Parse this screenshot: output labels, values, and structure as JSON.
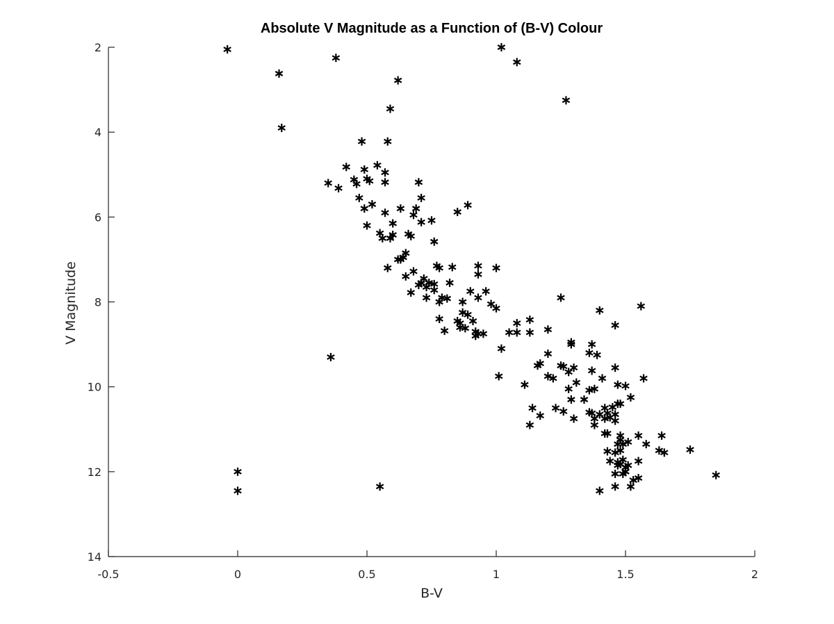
{
  "chart_data": {
    "type": "scatter",
    "title": "Absolute V Magnitude as a Function of (B-V) Colour",
    "xlabel": "B-V",
    "ylabel": "V Magnitude",
    "xlim": [
      -0.5,
      2
    ],
    "ylim": [
      2,
      14
    ],
    "y_reversed": true,
    "grid": false,
    "legend": "none",
    "marker": "asterisk",
    "marker_color": "#000000",
    "xticks": [
      "-0.5",
      "0",
      "0.5",
      "1",
      "1.5",
      "2"
    ],
    "yticks": [
      "2",
      "4",
      "6",
      "8",
      "10",
      "12",
      "14"
    ],
    "points": [
      [
        -0.04,
        2.05
      ],
      [
        0.38,
        2.25
      ],
      [
        0.16,
        2.62
      ],
      [
        1.02,
        2.0
      ],
      [
        1.08,
        2.35
      ],
      [
        0.62,
        2.78
      ],
      [
        1.27,
        3.25
      ],
      [
        0.59,
        3.45
      ],
      [
        0.17,
        3.9
      ],
      [
        0.48,
        4.22
      ],
      [
        0.58,
        4.22
      ],
      [
        0.42,
        4.82
      ],
      [
        0.54,
        4.78
      ],
      [
        0.49,
        4.88
      ],
      [
        0.57,
        4.95
      ],
      [
        0.35,
        5.2
      ],
      [
        0.39,
        5.32
      ],
      [
        0.45,
        5.12
      ],
      [
        0.46,
        5.22
      ],
      [
        0.5,
        5.1
      ],
      [
        0.51,
        5.15
      ],
      [
        0.57,
        5.18
      ],
      [
        0.7,
        5.18
      ],
      [
        0.47,
        5.55
      ],
      [
        0.71,
        5.55
      ],
      [
        0.49,
        5.8
      ],
      [
        0.52,
        5.7
      ],
      [
        0.63,
        5.8
      ],
      [
        0.57,
        5.9
      ],
      [
        0.69,
        5.8
      ],
      [
        0.85,
        5.88
      ],
      [
        0.89,
        5.72
      ],
      [
        0.68,
        5.95
      ],
      [
        0.71,
        6.12
      ],
      [
        0.75,
        6.08
      ],
      [
        0.6,
        6.15
      ],
      [
        0.5,
        6.2
      ],
      [
        0.55,
        6.38
      ],
      [
        0.6,
        6.42
      ],
      [
        0.59,
        6.5
      ],
      [
        0.56,
        6.5
      ],
      [
        0.66,
        6.4
      ],
      [
        0.67,
        6.45
      ],
      [
        0.76,
        6.58
      ],
      [
        0.65,
        6.85
      ],
      [
        0.64,
        6.95
      ],
      [
        0.63,
        7.0
      ],
      [
        0.62,
        7.0
      ],
      [
        0.58,
        7.2
      ],
      [
        0.77,
        7.15
      ],
      [
        0.78,
        7.2
      ],
      [
        0.83,
        7.18
      ],
      [
        0.93,
        7.15
      ],
      [
        0.93,
        7.35
      ],
      [
        1.0,
        7.2
      ],
      [
        0.68,
        7.28
      ],
      [
        0.65,
        7.4
      ],
      [
        0.72,
        7.45
      ],
      [
        0.71,
        7.55
      ],
      [
        0.74,
        7.55
      ],
      [
        0.76,
        7.58
      ],
      [
        0.82,
        7.55
      ],
      [
        0.7,
        7.6
      ],
      [
        0.73,
        7.65
      ],
      [
        0.76,
        7.72
      ],
      [
        0.67,
        7.78
      ],
      [
        0.73,
        7.9
      ],
      [
        0.79,
        7.9
      ],
      [
        0.81,
        7.92
      ],
      [
        0.78,
        8.0
      ],
      [
        0.87,
        8.0
      ],
      [
        0.93,
        7.9
      ],
      [
        0.9,
        7.75
      ],
      [
        0.96,
        7.75
      ],
      [
        0.98,
        8.05
      ],
      [
        1.0,
        8.15
      ],
      [
        0.87,
        8.25
      ],
      [
        0.85,
        8.45
      ],
      [
        0.86,
        8.5
      ],
      [
        0.86,
        8.6
      ],
      [
        0.88,
        8.62
      ],
      [
        0.89,
        8.3
      ],
      [
        0.91,
        8.45
      ],
      [
        0.92,
        8.7
      ],
      [
        0.93,
        8.75
      ],
      [
        0.92,
        8.8
      ],
      [
        0.95,
        8.75
      ],
      [
        0.78,
        8.4
      ],
      [
        0.8,
        8.68
      ],
      [
        1.05,
        8.72
      ],
      [
        1.08,
        8.5
      ],
      [
        1.08,
        8.72
      ],
      [
        1.13,
        8.42
      ],
      [
        1.13,
        8.72
      ],
      [
        1.25,
        7.9
      ],
      [
        1.2,
        8.65
      ],
      [
        1.4,
        8.2
      ],
      [
        1.46,
        8.55
      ],
      [
        1.56,
        8.1
      ],
      [
        1.02,
        9.1
      ],
      [
        0.36,
        9.3
      ],
      [
        1.01,
        9.75
      ],
      [
        1.11,
        9.95
      ],
      [
        1.16,
        9.5
      ],
      [
        1.17,
        9.45
      ],
      [
        1.2,
        9.22
      ],
      [
        1.2,
        9.75
      ],
      [
        1.22,
        9.8
      ],
      [
        1.25,
        9.5
      ],
      [
        1.26,
        9.52
      ],
      [
        1.29,
        8.95
      ],
      [
        1.29,
        9.0
      ],
      [
        1.28,
        9.65
      ],
      [
        1.3,
        9.55
      ],
      [
        1.31,
        9.9
      ],
      [
        1.28,
        10.05
      ],
      [
        1.29,
        10.3
      ],
      [
        1.34,
        10.3
      ],
      [
        1.36,
        9.2
      ],
      [
        1.37,
        9.0
      ],
      [
        1.39,
        9.25
      ],
      [
        1.37,
        9.62
      ],
      [
        1.38,
        10.05
      ],
      [
        1.36,
        10.08
      ],
      [
        1.41,
        9.8
      ],
      [
        1.46,
        9.55
      ],
      [
        1.47,
        9.95
      ],
      [
        1.5,
        9.98
      ],
      [
        1.57,
        9.8
      ],
      [
        1.52,
        10.25
      ],
      [
        1.14,
        10.5
      ],
      [
        1.17,
        10.68
      ],
      [
        1.13,
        10.9
      ],
      [
        1.23,
        10.5
      ],
      [
        1.26,
        10.58
      ],
      [
        1.3,
        10.75
      ],
      [
        1.36,
        10.6
      ],
      [
        1.37,
        10.62
      ],
      [
        1.38,
        10.75
      ],
      [
        1.38,
        10.9
      ],
      [
        1.4,
        10.65
      ],
      [
        1.42,
        10.5
      ],
      [
        1.42,
        10.75
      ],
      [
        1.43,
        10.62
      ],
      [
        1.44,
        10.72
      ],
      [
        1.46,
        10.65
      ],
      [
        1.47,
        10.4
      ],
      [
        1.48,
        10.4
      ],
      [
        1.45,
        10.48
      ],
      [
        1.46,
        10.8
      ],
      [
        1.42,
        11.1
      ],
      [
        1.43,
        11.1
      ],
      [
        1.47,
        11.35
      ],
      [
        1.48,
        11.15
      ],
      [
        1.48,
        11.25
      ],
      [
        1.49,
        11.35
      ],
      [
        1.51,
        11.3
      ],
      [
        1.48,
        11.5
      ],
      [
        1.43,
        11.52
      ],
      [
        1.46,
        11.55
      ],
      [
        1.44,
        11.75
      ],
      [
        1.47,
        11.78
      ],
      [
        1.49,
        11.72
      ],
      [
        1.48,
        11.82
      ],
      [
        1.47,
        11.85
      ],
      [
        1.5,
        11.9
      ],
      [
        1.51,
        11.85
      ],
      [
        1.46,
        12.05
      ],
      [
        1.49,
        12.05
      ],
      [
        1.5,
        12.0
      ],
      [
        1.5,
        12.0
      ],
      [
        1.55,
        11.15
      ],
      [
        1.58,
        11.35
      ],
      [
        1.55,
        11.75
      ],
      [
        1.53,
        12.2
      ],
      [
        1.55,
        12.15
      ],
      [
        1.52,
        12.35
      ],
      [
        1.46,
        12.35
      ],
      [
        1.4,
        12.45
      ],
      [
        1.63,
        11.5
      ],
      [
        1.64,
        11.15
      ],
      [
        1.65,
        11.55
      ],
      [
        1.75,
        11.48
      ],
      [
        1.85,
        12.08
      ],
      [
        0.0,
        12.0
      ],
      [
        0.0,
        12.45
      ],
      [
        0.55,
        12.35
      ]
    ]
  }
}
